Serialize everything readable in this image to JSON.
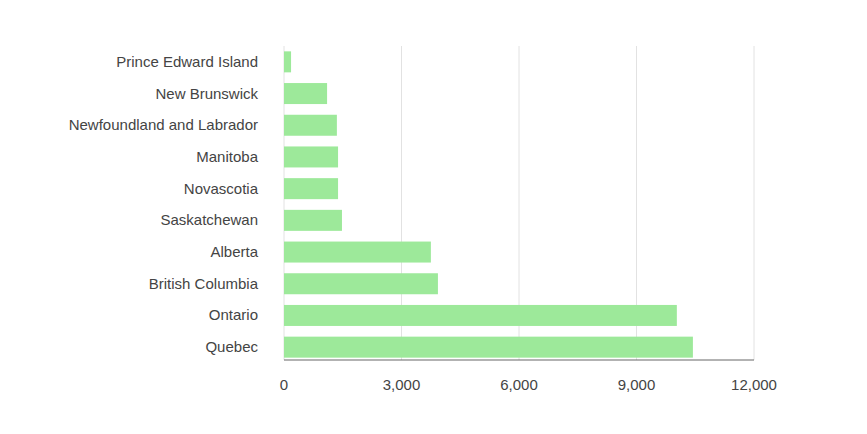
{
  "chart_data": {
    "type": "bar",
    "orientation": "horizontal",
    "categories": [
      "Prince Edward Island",
      "New Brunswick",
      "Newfoundland and Labrador",
      "Manitoba",
      "Novascotia",
      "Saskatchewan",
      "Alberta",
      "British Columbia",
      "Ontario",
      "Quebec"
    ],
    "values": [
      180,
      1100,
      1350,
      1380,
      1380,
      1480,
      3750,
      3930,
      10030,
      10440
    ],
    "color": "#9de99a",
    "xlim": [
      0,
      12000
    ],
    "xticks": [
      0,
      {
        "value": 3000,
        "label": "3,000"
      },
      {
        "value": 6000,
        "label": "6,000"
      },
      {
        "value": 9000,
        "label": "9,000"
      },
      {
        "value": 12000,
        "label": "12,000"
      }
    ],
    "grid": true
  }
}
